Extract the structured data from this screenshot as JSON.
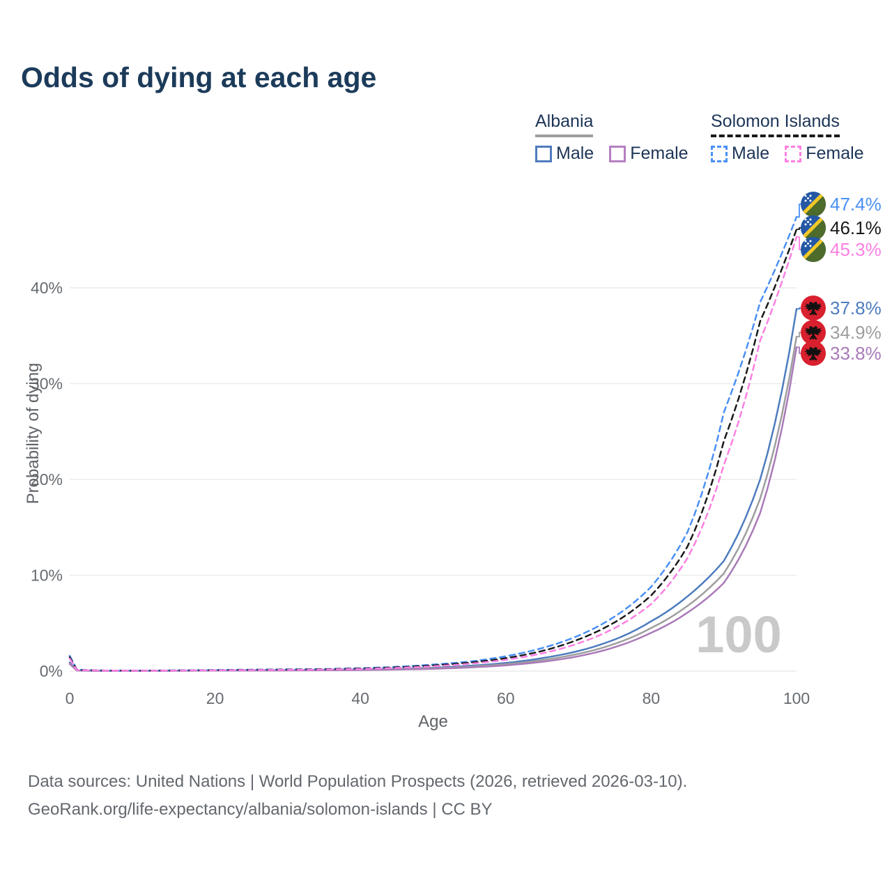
{
  "header": {
    "title": "Odds of dying at each age"
  },
  "legend": {
    "groups": [
      {
        "label": "Albania",
        "underline_style": "solid",
        "underline_color": "#9e9e9e",
        "items": [
          {
            "label": "Male",
            "color": "#4d7cbe",
            "style": "solid"
          },
          {
            "label": "Female",
            "color": "#b57fc1",
            "style": "solid"
          }
        ]
      },
      {
        "label": "Solomon Islands",
        "underline_style": "dashed",
        "underline_color": "#1a1a1a",
        "items": [
          {
            "label": "Male",
            "color": "#4a90f5",
            "style": "dashed"
          },
          {
            "label": "Female",
            "color": "#fc80e3",
            "style": "dashed"
          }
        ]
      }
    ]
  },
  "watermark": "100",
  "footer": {
    "line1": "Data sources: United Nations | World Population Prospects (2026, retrieved 2026-03-10).",
    "line2": "GeoRank.org/life-expectancy/albania/solomon-islands | CC BY"
  },
  "chart_data": {
    "type": "line",
    "title": "Odds of dying at each age",
    "xlabel": "Age",
    "ylabel": "Probability of dying",
    "xlim": [
      0,
      100
    ],
    "ylim": [
      0,
      49.7
    ],
    "grid": "horizontal",
    "legend_position": "top-right",
    "x_ticks": [
      0,
      20,
      40,
      60,
      80,
      100
    ],
    "y_ticks": [
      {
        "v": 0,
        "label": "0%"
      },
      {
        "v": 10,
        "label": "10%"
      },
      {
        "v": 20,
        "label": "20%"
      },
      {
        "v": 30,
        "label": "30%"
      },
      {
        "v": 40,
        "label": "40%"
      }
    ],
    "ages": [
      0,
      1,
      5,
      10,
      15,
      20,
      25,
      30,
      35,
      40,
      45,
      50,
      55,
      60,
      65,
      70,
      75,
      80,
      85,
      90,
      95,
      100
    ],
    "series": [
      {
        "name": "Albania Male",
        "country": "Albania",
        "sex": "Male",
        "style": "solid",
        "color": "#4d7cbe",
        "end_label": "37.8%",
        "end_value": 37.8,
        "values": [
          0.9,
          0.07,
          0.03,
          0.03,
          0.05,
          0.08,
          0.09,
          0.1,
          0.12,
          0.16,
          0.23,
          0.35,
          0.55,
          0.85,
          1.35,
          2.1,
          3.3,
          5.2,
          7.8,
          11.5,
          20,
          37.8
        ]
      },
      {
        "name": "Albania Both sexes",
        "country": "Albania",
        "sex": "Both",
        "style": "solid",
        "color": "#9e9e9e",
        "end_label": "34.9%",
        "end_value": 34.9,
        "values": [
          0.8,
          0.06,
          0.028,
          0.027,
          0.04,
          0.06,
          0.07,
          0.08,
          0.1,
          0.13,
          0.19,
          0.29,
          0.46,
          0.72,
          1.15,
          1.8,
          2.85,
          4.5,
          6.8,
          10.2,
          18,
          34.9
        ]
      },
      {
        "name": "Albania Female",
        "country": "Albania",
        "sex": "Female",
        "style": "solid",
        "color": "#a97ab8",
        "end_label": "33.8%",
        "end_value": 33.8,
        "values": [
          0.75,
          0.055,
          0.025,
          0.024,
          0.035,
          0.05,
          0.06,
          0.07,
          0.085,
          0.11,
          0.16,
          0.24,
          0.38,
          0.6,
          0.97,
          1.55,
          2.5,
          4.0,
          6.1,
          9.2,
          16.5,
          33.8
        ]
      },
      {
        "name": "Solomon Islands Male",
        "country": "Solomon Islands",
        "sex": "Male",
        "style": "dashed",
        "color": "#4a90f5",
        "end_label": "47.4%",
        "end_value": 47.4,
        "values": [
          1.6,
          0.15,
          0.06,
          0.05,
          0.08,
          0.12,
          0.15,
          0.18,
          0.22,
          0.3,
          0.45,
          0.68,
          1.0,
          1.55,
          2.4,
          3.7,
          5.7,
          8.8,
          14.5,
          27,
          38.5,
          47.4
        ]
      },
      {
        "name": "Solomon Islands Both sexes",
        "country": "Solomon Islands",
        "sex": "Both",
        "style": "dashed",
        "color": "#1a1a1a",
        "end_label": "46.1%",
        "end_value": 46.1,
        "values": [
          1.45,
          0.13,
          0.055,
          0.045,
          0.07,
          0.1,
          0.13,
          0.155,
          0.19,
          0.26,
          0.39,
          0.59,
          0.88,
          1.35,
          2.1,
          3.3,
          5.1,
          7.9,
          13,
          24,
          36.5,
          46.1
        ]
      },
      {
        "name": "Solomon Islands Female",
        "country": "Solomon Islands",
        "sex": "Female",
        "style": "dashed",
        "color": "#fc80e3",
        "end_label": "45.3%",
        "end_value": 45.3,
        "values": [
          1.3,
          0.12,
          0.05,
          0.04,
          0.06,
          0.09,
          0.11,
          0.13,
          0.16,
          0.22,
          0.33,
          0.5,
          0.76,
          1.18,
          1.85,
          2.9,
          4.5,
          7.0,
          11.8,
          21.5,
          34.5,
          45.3
        ]
      }
    ]
  }
}
